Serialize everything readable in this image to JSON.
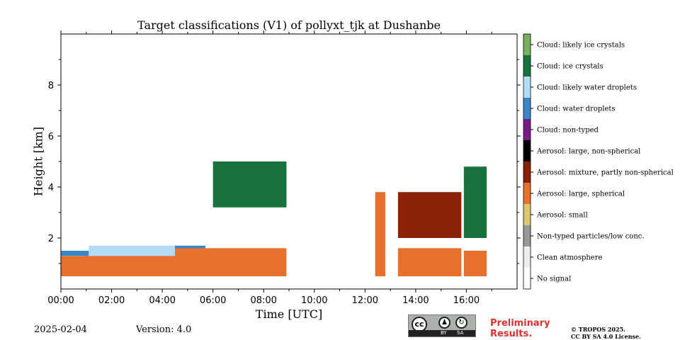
{
  "chart_data": {
    "type": "heatmap",
    "title": "Target classifications (V1) of pollyxt_tjk at Dushanbe",
    "xlabel": "Time [UTC]",
    "ylabel": "Height [km]",
    "x_range_hours": [
      0,
      18
    ],
    "y_range_km": [
      0,
      10
    ],
    "x_ticks": [
      {
        "value": 0,
        "label": "00:00"
      },
      {
        "value": 2,
        "label": "02:00"
      },
      {
        "value": 4,
        "label": "04:00"
      },
      {
        "value": 6,
        "label": "06:00"
      },
      {
        "value": 8,
        "label": "08:00"
      },
      {
        "value": 10,
        "label": "10:00"
      },
      {
        "value": 12,
        "label": "12:00"
      },
      {
        "value": 14,
        "label": "14:00"
      },
      {
        "value": 16,
        "label": "16:00"
      }
    ],
    "y_ticks": [
      {
        "value": 2,
        "label": "2"
      },
      {
        "value": 4,
        "label": "4"
      },
      {
        "value": 6,
        "label": "6"
      },
      {
        "value": 8,
        "label": "8"
      }
    ],
    "classes": [
      {
        "label": "No signal",
        "color": "#ffffff"
      },
      {
        "label": "Clean atmosphere",
        "color": "#eeeeee"
      },
      {
        "label": "Non-typed particles/low conc.",
        "color": "#999999"
      },
      {
        "label": "Aerosol: small",
        "color": "#dcc66e"
      },
      {
        "label": "Aerosol: large, spherical",
        "color": "#e8702f"
      },
      {
        "label": "Aerosol: mixture, partly non-spherical",
        "color": "#8b2208"
      },
      {
        "label": "Aerosol: large, non-spherical",
        "color": "#000000"
      },
      {
        "label": "Cloud: non-typed",
        "color": "#7b1b8a"
      },
      {
        "label": "Cloud: water droplets",
        "color": "#3a87c8"
      },
      {
        "label": "Cloud: likely water droplets",
        "color": "#b4dcf6"
      },
      {
        "label": "Cloud: ice crystals",
        "color": "#17733b"
      },
      {
        "label": "Cloud: likely ice crystals",
        "color": "#79b05c"
      }
    ],
    "features": [
      {
        "x": [
          0.0,
          4.5
        ],
        "y": [
          0.5,
          1.3
        ],
        "class": "Aerosol: large, spherical"
      },
      {
        "x": [
          0.0,
          1.1
        ],
        "y": [
          1.3,
          1.5
        ],
        "class": "Cloud: water droplets"
      },
      {
        "x": [
          1.1,
          4.5
        ],
        "y": [
          1.3,
          1.7
        ],
        "class": "Cloud: likely water droplets"
      },
      {
        "x": [
          4.5,
          5.7
        ],
        "y": [
          1.55,
          1.7
        ],
        "class": "Cloud: water droplets"
      },
      {
        "x": [
          4.5,
          8.9
        ],
        "y": [
          0.5,
          1.6
        ],
        "class": "Aerosol: large, spherical"
      },
      {
        "x": [
          6.0,
          8.9
        ],
        "y": [
          3.2,
          5.0
        ],
        "class": "Cloud: ice crystals"
      },
      {
        "x": [
          12.4,
          12.8
        ],
        "y": [
          0.5,
          3.8
        ],
        "class": "Aerosol: large, spherical"
      },
      {
        "x": [
          13.3,
          15.8
        ],
        "y": [
          2.0,
          3.8
        ],
        "class": "Aerosol: mixture, partly non-spherical"
      },
      {
        "x": [
          13.3,
          15.8
        ],
        "y": [
          0.5,
          1.6
        ],
        "class": "Aerosol: large, spherical"
      },
      {
        "x": [
          15.9,
          16.8
        ],
        "y": [
          2.0,
          4.8
        ],
        "class": "Cloud: ice crystals"
      },
      {
        "x": [
          15.9,
          16.8
        ],
        "y": [
          0.5,
          1.5
        ],
        "class": "Aerosol: large, spherical"
      }
    ]
  },
  "footer": {
    "date": "2025-02-04",
    "version": "Version: 4.0",
    "cc_label": "cc",
    "by_label": "BY",
    "sa_label": "SA",
    "preliminary": "Preliminary",
    "results": "Results.",
    "copyright": "© TROPOS 2025.",
    "license": "CC BY SA 4.0 License."
  }
}
